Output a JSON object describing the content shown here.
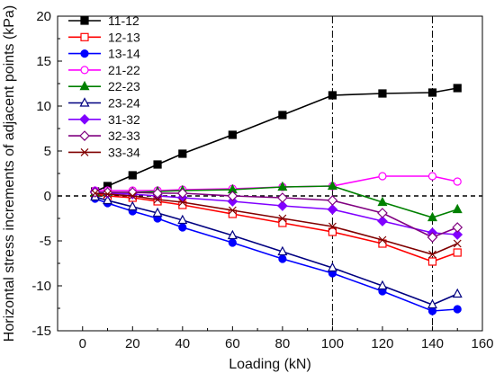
{
  "chart_data": {
    "type": "line",
    "title": "",
    "xlabel": "Loading (kN)",
    "ylabel": "Horizontal stress increments of adjacent points (kPa)",
    "xlim": [
      -10,
      160
    ],
    "ylim": [
      -15,
      20
    ],
    "xticks": [
      0,
      20,
      40,
      60,
      80,
      100,
      120,
      140,
      160
    ],
    "yticks": [
      -15,
      -10,
      -5,
      0,
      5,
      10,
      15,
      20
    ],
    "grid": false,
    "legend_position": "top-left",
    "reference_lines": [
      {
        "axis": "y",
        "value": 0,
        "style": "dashed"
      },
      {
        "axis": "x",
        "value": 100,
        "style": "dash-dot"
      },
      {
        "axis": "x",
        "value": 140,
        "style": "dash-dot"
      }
    ],
    "x": [
      5,
      10,
      20,
      30,
      40,
      60,
      80,
      100,
      120,
      140,
      150
    ],
    "series": [
      {
        "name": "11-12",
        "color": "#000000",
        "marker": "square-filled",
        "values": [
          0.5,
          1.1,
          2.3,
          3.5,
          4.7,
          6.8,
          9.0,
          11.2,
          11.4,
          11.5,
          12.0
        ]
      },
      {
        "name": "12-13",
        "color": "#ff0000",
        "marker": "square-open",
        "values": [
          0.2,
          0.0,
          -0.2,
          -0.6,
          -1.0,
          -2.0,
          -3.0,
          -4.0,
          -5.3,
          -7.3,
          -6.3
        ]
      },
      {
        "name": "13-14",
        "color": "#0000ff",
        "marker": "circle-filled",
        "values": [
          -0.3,
          -0.8,
          -1.7,
          -2.5,
          -3.5,
          -5.2,
          -7.0,
          -8.6,
          -10.6,
          -12.8,
          -12.6
        ]
      },
      {
        "name": "21-22",
        "color": "#ff00ff",
        "marker": "circle-open",
        "values": [
          0.6,
          0.6,
          0.6,
          0.6,
          0.7,
          0.8,
          1.0,
          1.1,
          2.2,
          2.2,
          1.6
        ]
      },
      {
        "name": "22-23",
        "color": "#008000",
        "marker": "triangle-filled",
        "values": [
          0.4,
          0.4,
          0.4,
          0.5,
          0.6,
          0.7,
          1.0,
          1.1,
          -0.7,
          -2.4,
          -1.5
        ]
      },
      {
        "name": "23-24",
        "color": "#000080",
        "marker": "triangle-open",
        "values": [
          -0.1,
          -0.5,
          -1.2,
          -1.9,
          -2.7,
          -4.4,
          -6.2,
          -8.0,
          -10.0,
          -12.1,
          -10.9
        ]
      },
      {
        "name": "31-32",
        "color": "#8000ff",
        "marker": "diamond-filled",
        "values": [
          0.5,
          0.3,
          0.2,
          0.0,
          -0.2,
          -0.6,
          -1.1,
          -1.5,
          -2.8,
          -4.1,
          -4.3
        ]
      },
      {
        "name": "32-33",
        "color": "#800080",
        "marker": "diamond-open",
        "values": [
          0.4,
          0.4,
          0.4,
          0.3,
          0.3,
          0.0,
          -0.2,
          -0.5,
          -1.9,
          -4.6,
          -3.5
        ]
      },
      {
        "name": "33-34",
        "color": "#800000",
        "marker": "x",
        "values": [
          0.3,
          0.2,
          0.0,
          -0.4,
          -0.7,
          -1.6,
          -2.5,
          -3.4,
          -4.9,
          -6.5,
          -5.3
        ]
      }
    ]
  }
}
